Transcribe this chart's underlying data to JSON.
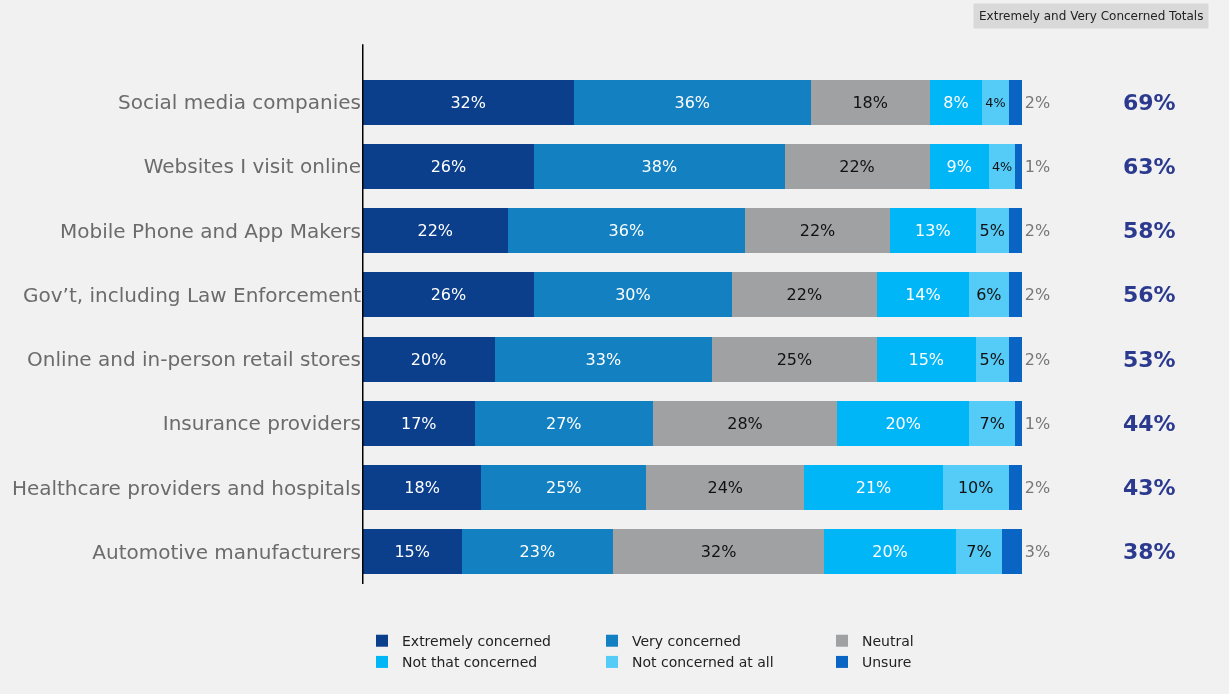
{
  "chart_data": {
    "type": "bar",
    "orientation": "horizontal",
    "stacked": true,
    "legend": "bottom",
    "categories": [
      "Social media companies",
      "Websites I visit online",
      "Mobile Phone and App Makers",
      "Gov’t, including Law Enforcement",
      "Online and in-person retail stores",
      "Insurance providers",
      "Healthcare providers and hospitals",
      "Automotive manufacturers"
    ],
    "series": [
      {
        "name": "Extremely concerned",
        "color": "#0b3f8c",
        "values": [
          32,
          26,
          22,
          26,
          20,
          17,
          18,
          15
        ],
        "value_labels": [
          "32%",
          "26%",
          "22%",
          "26%",
          "20%",
          "17%",
          "18%",
          "15%"
        ]
      },
      {
        "name": "Very concerned",
        "color": "#1380c2",
        "values": [
          36,
          38,
          36,
          30,
          33,
          27,
          25,
          23
        ],
        "value_labels": [
          "36%",
          "38%",
          "36%",
          "30%",
          "33%",
          "27%",
          "25%",
          "23%"
        ]
      },
      {
        "name": "Neutral",
        "color": "#a0a1a3",
        "values": [
          18,
          22,
          22,
          22,
          25,
          28,
          24,
          32
        ],
        "value_labels": [
          "18%",
          "22%",
          "22%",
          "22%",
          "25%",
          "28%",
          "24%",
          "32%"
        ]
      },
      {
        "name": "Not that concerned",
        "color": "#00b6f7",
        "values": [
          8,
          9,
          13,
          14,
          15,
          20,
          21,
          20
        ],
        "value_labels": [
          "8%",
          "9%",
          "13%",
          "14%",
          "15%",
          "20%",
          "21%",
          "20%"
        ]
      },
      {
        "name": "Not concerned at all",
        "color": "#55cbf8",
        "values": [
          4,
          4,
          5,
          6,
          5,
          7,
          10,
          7
        ],
        "value_labels": [
          "4%",
          "4%",
          "5%",
          "6%",
          "5%",
          "7%",
          "10%",
          "7%"
        ]
      },
      {
        "name": "Unsure",
        "color": "#0a64c4",
        "values": [
          2,
          1,
          2,
          2,
          2,
          1,
          2,
          3
        ],
        "value_labels": [
          "2%",
          "1%",
          "2%",
          "2%",
          "2%",
          "1%",
          "2%",
          "3%"
        ]
      }
    ],
    "annotations": [
      "Extremely and Very Concerned Totals",
      "69%",
      "63%",
      "58%",
      "56%",
      "53%",
      "44%",
      "43%",
      "38%"
    ]
  }
}
